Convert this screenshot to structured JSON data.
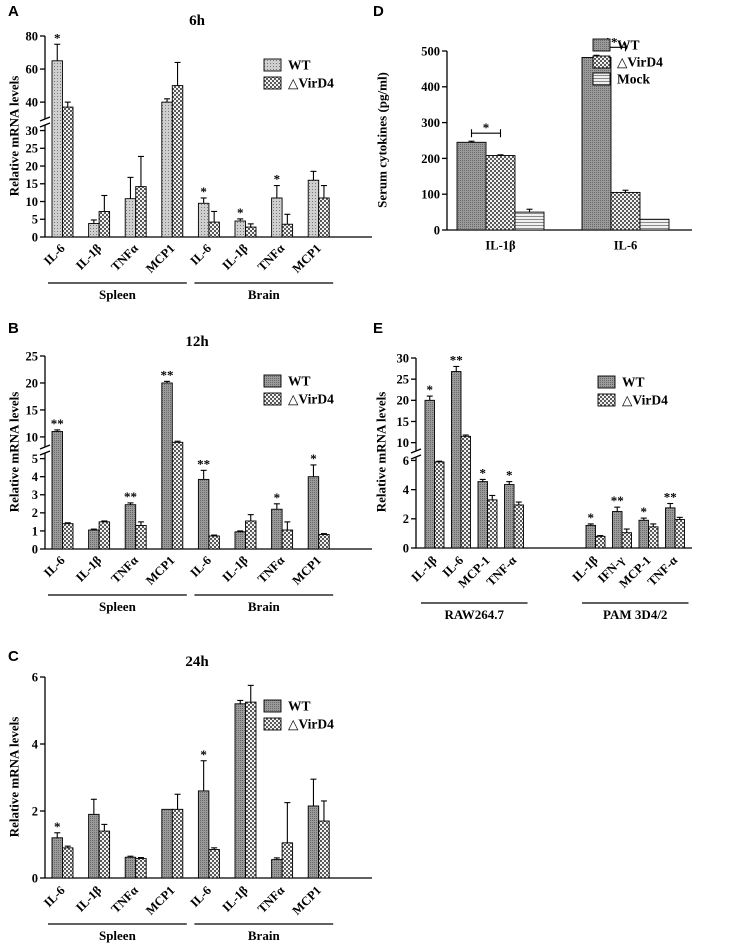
{
  "chart_data": [
    {
      "id": "A",
      "panel_label": "A",
      "type": "bar",
      "title": "6h",
      "ylabel": "Relative mRNA levels",
      "categories": [
        "IL-6",
        "IL-1β",
        "TNFα",
        "MCP1",
        "IL-6",
        "IL-1β",
        "TNFα",
        "MCP1"
      ],
      "groups": [
        {
          "label": "Spleen",
          "from": 0,
          "to": 3
        },
        {
          "label": "Brain",
          "from": 4,
          "to": 7
        }
      ],
      "series": [
        {
          "name": "WT",
          "values": [
            65,
            3.8,
            10.8,
            40,
            9.5,
            4.5,
            11,
            16
          ],
          "errors": [
            10,
            1,
            6,
            2,
            1.5,
            0.6,
            3.5,
            2.5
          ],
          "pattern": "light"
        },
        {
          "name": "△VirD4",
          "values": [
            37,
            7.2,
            14.2,
            50,
            4.2,
            2.8,
            3.6,
            11
          ],
          "errors": [
            3,
            4.5,
            8.5,
            14,
            3,
            0.9,
            2.8,
            3.5
          ],
          "pattern": "check"
        }
      ],
      "significance": [
        {
          "index": 0,
          "series": 0,
          "label": "*"
        },
        {
          "index": 4,
          "series": 0,
          "label": "*"
        },
        {
          "index": 5,
          "series": 0,
          "label": "*"
        },
        {
          "index": 6,
          "series": 0,
          "label": "*"
        }
      ],
      "yaxis": {
        "broken": true,
        "lower_ticks": [
          0,
          5,
          10,
          15,
          20,
          25,
          30
        ],
        "upper_ticks": [
          40,
          60,
          80
        ],
        "lower_range": [
          0,
          31
        ],
        "upper_range": [
          31,
          80
        ]
      },
      "legend_position": "top-right"
    },
    {
      "id": "B",
      "panel_label": "B",
      "type": "bar",
      "title": "12h",
      "ylabel": "Relative mRNA levels",
      "categories": [
        "IL-6",
        "IL-1β",
        "TNFα",
        "MCP1",
        "IL-6",
        "IL-1β",
        "TNFα",
        "MCP1"
      ],
      "groups": [
        {
          "label": "Spleen",
          "from": 0,
          "to": 3
        },
        {
          "label": "Brain",
          "from": 4,
          "to": 7
        }
      ],
      "series": [
        {
          "name": "WT",
          "values": [
            11,
            1.05,
            2.45,
            20,
            3.85,
            0.95,
            2.2,
            4
          ],
          "errors": [
            0.3,
            0.05,
            0.1,
            0.3,
            0.5,
            0.05,
            0.3,
            0.65
          ],
          "pattern": "dark"
        },
        {
          "name": "△VirD4",
          "values": [
            1.4,
            1.5,
            1.3,
            9,
            0.72,
            1.55,
            1.05,
            0.8
          ],
          "errors": [
            0.05,
            0.05,
            0.2,
            0.2,
            0.05,
            0.35,
            0.45,
            0.05
          ],
          "pattern": "check"
        }
      ],
      "significance": [
        {
          "index": 0,
          "series": 0,
          "label": "**"
        },
        {
          "index": 2,
          "series": 0,
          "label": "**"
        },
        {
          "index": 3,
          "series": 0,
          "label": "**"
        },
        {
          "index": 4,
          "series": 0,
          "label": "**"
        },
        {
          "index": 6,
          "series": 0,
          "label": "*"
        },
        {
          "index": 7,
          "series": 0,
          "label": "*"
        }
      ],
      "yaxis": {
        "broken": true,
        "lower_ticks": [
          0,
          1,
          2,
          3,
          4,
          5
        ],
        "upper_ticks": [
          10,
          15,
          20,
          25
        ],
        "lower_range": [
          0,
          5.2
        ],
        "upper_range": [
          8.5,
          25
        ]
      },
      "legend_position": "top-right"
    },
    {
      "id": "C",
      "panel_label": "C",
      "type": "bar",
      "title": "24h",
      "ylabel": "Relative mRNA levels",
      "categories": [
        "IL-6",
        "IL-1β",
        "TNFα",
        "MCP1",
        "IL-6",
        "IL-1β",
        "TNFα",
        "MCP1"
      ],
      "groups": [
        {
          "label": "Spleen",
          "from": 0,
          "to": 3
        },
        {
          "label": "Brain",
          "from": 4,
          "to": 7
        }
      ],
      "series": [
        {
          "name": "WT",
          "values": [
            1.2,
            1.9,
            0.62,
            2.05,
            2.6,
            5.2,
            0.55,
            2.15
          ],
          "errors": [
            0.15,
            0.45,
            0.03,
            0.0,
            0.9,
            0.1,
            0.05,
            0.8
          ],
          "pattern": "dark"
        },
        {
          "name": "△VirD4",
          "values": [
            0.9,
            1.4,
            0.58,
            2.05,
            0.85,
            5.25,
            1.05,
            1.7
          ],
          "errors": [
            0.05,
            0.2,
            0.03,
            0.45,
            0.05,
            0.5,
            1.2,
            0.6
          ],
          "pattern": "check"
        }
      ],
      "significance": [
        {
          "index": 0,
          "series": 0,
          "label": "*"
        },
        {
          "index": 4,
          "series": 0,
          "label": "*"
        }
      ],
      "yaxis": {
        "broken": false,
        "ticks": [
          0,
          2,
          4,
          6
        ],
        "range": [
          0,
          6
        ]
      },
      "legend_position": "top-right"
    },
    {
      "id": "D",
      "panel_label": "D",
      "type": "bar",
      "title": "",
      "ylabel": "Serum cytokines (pg/ml)",
      "categories": [
        "IL-1β",
        "IL-6"
      ],
      "groups": [],
      "series": [
        {
          "name": "WT",
          "values": [
            245,
            482
          ],
          "errors": [
            3,
            6
          ],
          "pattern": "dark"
        },
        {
          "name": "△VirD4",
          "values": [
            208,
            105
          ],
          "errors": [
            2,
            6
          ],
          "pattern": "check"
        },
        {
          "name": "Mock",
          "values": [
            50,
            30
          ],
          "errors": [
            8,
            0
          ],
          "pattern": "stripe"
        }
      ],
      "significance": [
        {
          "index": 0,
          "series": 0,
          "label": "*",
          "bracket": true
        },
        {
          "index": 1,
          "series": 0,
          "label": "**",
          "bracket": true
        }
      ],
      "yaxis": {
        "broken": false,
        "ticks": [
          0,
          100,
          200,
          300,
          400,
          500
        ],
        "range": [
          0,
          500
        ]
      },
      "legend_position": "top-right"
    },
    {
      "id": "E",
      "panel_label": "E",
      "type": "bar",
      "title": "",
      "ylabel": "Relative mRNA levels",
      "categories": [
        "IL-1β",
        "IL-6",
        "MCP-1",
        "TNF-α",
        "IL-1β",
        "IFN-γ",
        "MCP-1",
        "TNF-α"
      ],
      "groups": [
        {
          "label": "RAW264.7",
          "from": 0,
          "to": 3
        },
        {
          "label": "PAM 3D4/2",
          "from": 4,
          "to": 7
        }
      ],
      "series": [
        {
          "name": "WT",
          "values": [
            20,
            26.8,
            4.55,
            4.35,
            1.55,
            2.5,
            1.9,
            2.75
          ],
          "errors": [
            1,
            1.2,
            0.15,
            0.2,
            0.1,
            0.3,
            0.15,
            0.3
          ],
          "pattern": "dark"
        },
        {
          "name": "△VirD4",
          "values": [
            5.9,
            11.5,
            3.3,
            2.95,
            0.8,
            1.05,
            1.45,
            1.95
          ],
          "errors": [
            0.05,
            0.3,
            0.3,
            0.2,
            0.05,
            0.25,
            0.2,
            0.15
          ],
          "pattern": "check"
        }
      ],
      "significance": [
        {
          "index": 0,
          "series": 0,
          "label": "*"
        },
        {
          "index": 1,
          "series": 0,
          "label": "**"
        },
        {
          "index": 2,
          "series": 0,
          "label": "*"
        },
        {
          "index": 3,
          "series": 0,
          "label": "*"
        },
        {
          "index": 4,
          "series": 0,
          "label": "*"
        },
        {
          "index": 5,
          "series": 0,
          "label": "**"
        },
        {
          "index": 6,
          "series": 0,
          "label": "*"
        },
        {
          "index": 7,
          "series": 0,
          "label": "**"
        }
      ],
      "yaxis": {
        "broken": true,
        "lower_ticks": [
          0,
          2,
          4,
          6
        ],
        "upper_ticks": [
          10,
          15,
          20,
          25,
          30
        ],
        "lower_range": [
          0,
          6.1
        ],
        "upper_range": [
          8.5,
          30
        ]
      },
      "legend_position": "top-right"
    }
  ]
}
